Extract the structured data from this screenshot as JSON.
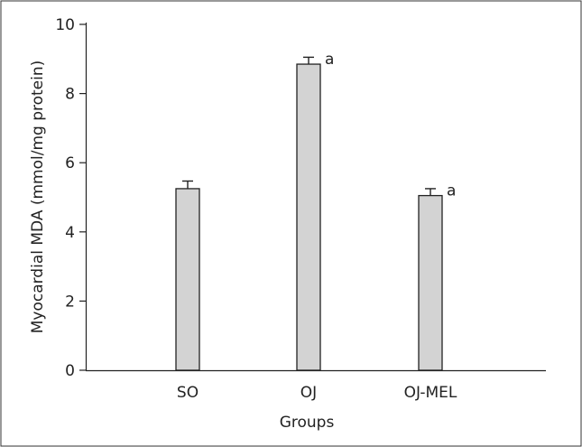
{
  "chart_data": {
    "type": "bar",
    "title": "",
    "xlabel": "Groups",
    "ylabel": "Myocardial MDA (mmol/mg protein)",
    "categories": [
      "SO",
      "OJ",
      "OJ-MEL"
    ],
    "values": [
      5.25,
      8.85,
      5.05
    ],
    "errors": [
      0.22,
      0.2,
      0.2
    ],
    "annotations": [
      "",
      "a",
      "a"
    ],
    "ylim": [
      0,
      10
    ],
    "yticks": [
      "0",
      "2",
      "4",
      "6",
      "8",
      "10"
    ],
    "grid": false,
    "bar_color": "#d3d3d3",
    "edge_color": "#222222"
  }
}
